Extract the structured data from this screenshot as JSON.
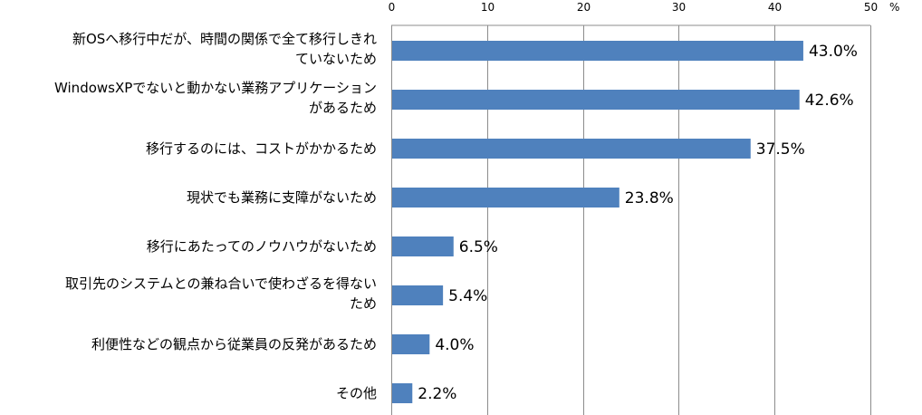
{
  "chart_data": {
    "type": "bar",
    "orientation": "horizontal",
    "unit_label": "%",
    "xlim": [
      0,
      50
    ],
    "ticks": [
      0,
      10,
      20,
      30,
      40,
      50
    ],
    "grid": true,
    "axis_position": "top",
    "bar_color": "#4f81bd",
    "categories": [
      [
        "新OSへ移行中だが、時間の関係で全て移行しきれ",
        "ていないため"
      ],
      [
        "WindowsXPでないと動かない業務アプリケーション",
        "があるため"
      ],
      [
        "移行するのには、コストがかかるため"
      ],
      [
        "現状でも業務に支障がないため"
      ],
      [
        "移行にあたってのノウハウがないため"
      ],
      [
        "取引先のシステムとの兼ね合いで使わざるを得ない",
        "ため"
      ],
      [
        "利便性などの観点から従業員の反発があるため"
      ],
      [
        "その他"
      ]
    ],
    "values": [
      43.0,
      42.6,
      37.5,
      23.8,
      6.5,
      5.4,
      4.0,
      2.2
    ],
    "value_labels": [
      "43.0%",
      "42.6%",
      "37.5%",
      "23.8%",
      "6.5%",
      "5.4%",
      "4.0%",
      "2.2%"
    ]
  }
}
